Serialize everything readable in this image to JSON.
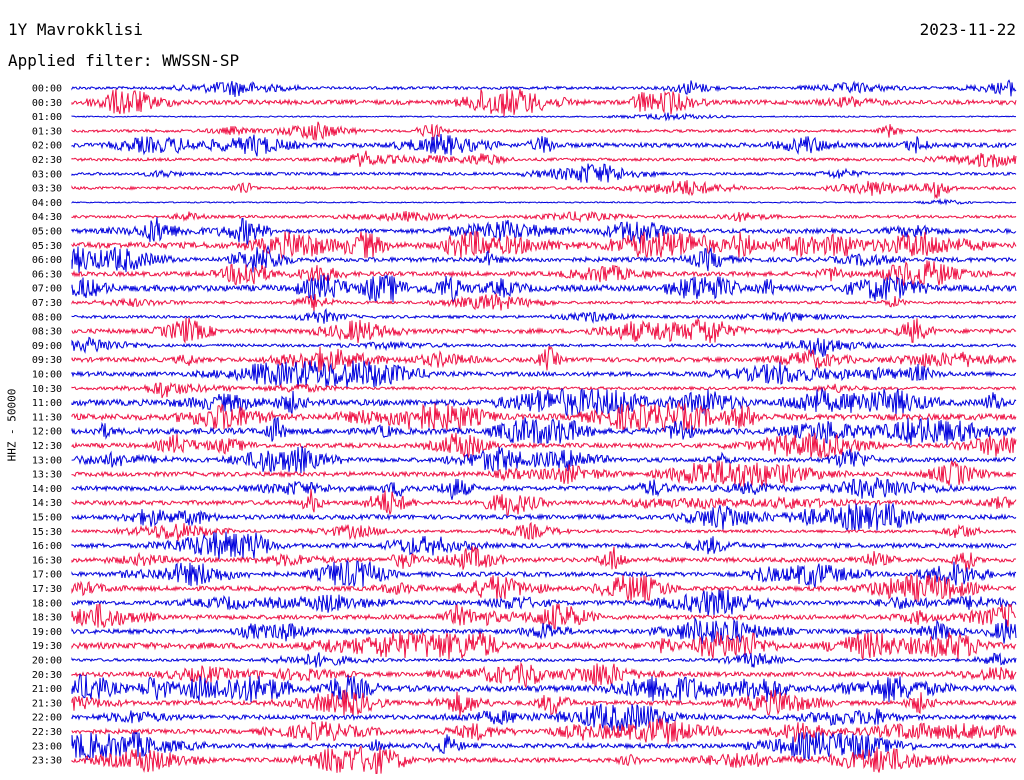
{
  "header": {
    "station": "1Y Mavrokklisi",
    "date": "2023-11-22",
    "filter": "Applied filter: WWSSN-SP"
  },
  "chart_data": {
    "type": "line",
    "title": "1Y Mavrokklisi",
    "ylabel": "HHZ - 50000",
    "row_labels": [
      "00:00",
      "00:30",
      "01:00",
      "01:30",
      "02:00",
      "02:30",
      "03:00",
      "03:30",
      "04:00",
      "04:30",
      "05:00",
      "05:30",
      "06:00",
      "06:30",
      "07:00",
      "07:30",
      "08:00",
      "08:30",
      "09:00",
      "09:30",
      "10:00",
      "10:30",
      "11:00",
      "11:30",
      "12:00",
      "12:30",
      "13:00",
      "13:30",
      "14:00",
      "14:30",
      "15:00",
      "15:30",
      "16:00",
      "16:30",
      "17:00",
      "17:30",
      "18:00",
      "18:30",
      "19:00",
      "19:30",
      "20:00",
      "20:30",
      "21:00",
      "21:30",
      "22:00",
      "22:30",
      "23:00",
      "23:30"
    ],
    "series_colors": [
      "#0000dd",
      "#ee1144"
    ],
    "activity": [
      1,
      2,
      0,
      1,
      2,
      1,
      1,
      1,
      0,
      1,
      2,
      3,
      2,
      2,
      3,
      1,
      1,
      2,
      1,
      2,
      2,
      1,
      3,
      3,
      3,
      2,
      2,
      2,
      2,
      2,
      2,
      1,
      2,
      2,
      2,
      2,
      2,
      2,
      2,
      3,
      1,
      2,
      3,
      2,
      2,
      2,
      2,
      2
    ]
  }
}
